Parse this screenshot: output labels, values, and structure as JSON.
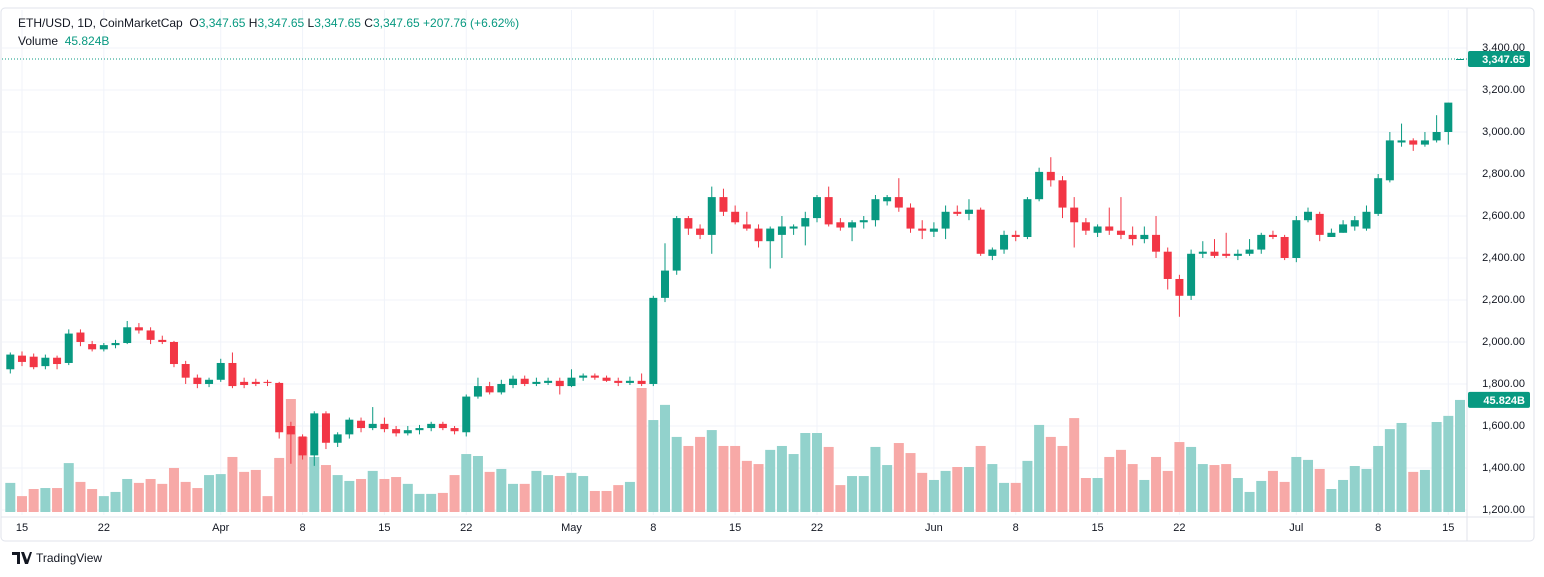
{
  "chart_data": {
    "type": "candlestick",
    "title": "ETH/USD, 1D, CoinMarketCap",
    "ohlc_header": [
      {
        "key": "O",
        "value": "3,347.65"
      },
      {
        "key": "H",
        "value": "3,347.65"
      },
      {
        "key": "L",
        "value": "3,347.65"
      },
      {
        "key": "C",
        "value": "3,347.65"
      }
    ],
    "change_label": "+207.76 (+6.62%)",
    "volume_title": "Volume",
    "volume_label": "45.824B",
    "last_price": {
      "value": 3347.65,
      "label": "3,347.65"
    },
    "footer": "TradingView",
    "up_color": "#089981",
    "down_color": "#f23645",
    "volume_up_color": "#92d2cc",
    "volume_down_color": "#f7a9a7",
    "grid": true,
    "categories": [
      null,
      "15",
      null,
      null,
      null,
      null,
      null,
      null,
      "22",
      null,
      null,
      null,
      null,
      null,
      null,
      null,
      null,
      null,
      "Apr",
      null,
      null,
      null,
      null,
      null,
      null,
      "8",
      null,
      null,
      null,
      null,
      null,
      null,
      "15",
      null,
      null,
      null,
      null,
      null,
      null,
      "22",
      null,
      null,
      null,
      null,
      null,
      null,
      null,
      null,
      "May",
      null,
      null,
      null,
      null,
      null,
      null,
      "8",
      null,
      null,
      null,
      null,
      null,
      null,
      "15",
      null,
      null,
      null,
      null,
      null,
      null,
      "22",
      null,
      null,
      null,
      null,
      null,
      null,
      null,
      null,
      null,
      "Jun",
      null,
      null,
      null,
      null,
      null,
      null,
      "8",
      null,
      null,
      null,
      null,
      null,
      null,
      "15",
      null,
      null,
      null,
      null,
      null,
      null,
      "22",
      null,
      null,
      null,
      null,
      null,
      null,
      null,
      null,
      null,
      "Jul",
      null,
      null,
      null,
      null,
      null,
      null,
      "8",
      null,
      null,
      null,
      null,
      null,
      "15",
      null
    ],
    "open": [
      1870,
      1935,
      1930,
      1885,
      1925,
      1900,
      2045,
      1990,
      1965,
      1985,
      1995,
      2070,
      2055,
      2010,
      2000,
      1895,
      1830,
      1800,
      1820,
      1900,
      1810,
      1810,
      1810,
      1805,
      1600,
      1550,
      1460,
      1660,
      1520,
      1560,
      1625,
      1590,
      1610,
      1585,
      1565,
      1580,
      1590,
      1610,
      1590,
      1570,
      1740,
      1790,
      1760,
      1795,
      1825,
      1800,
      1805,
      1815,
      1790,
      1830,
      1840,
      1830,
      1815,
      1805,
      1815,
      1800,
      2210,
      2340,
      2590,
      2540,
      2510,
      2690,
      2620,
      2560,
      2540,
      2480,
      2510,
      2540,
      2550,
      2590,
      2690,
      2570,
      2545,
      2570,
      2580,
      2670,
      2690,
      2640,
      2540,
      2525,
      2540,
      2620,
      2610,
      2630,
      2410,
      2440,
      2510,
      2500,
      2680,
      2810,
      2770,
      2640,
      2570,
      2520,
      2550,
      2530,
      2510,
      2490,
      2510,
      2430,
      2300,
      2220,
      2420,
      2430,
      2420,
      2410,
      2420,
      2440,
      2510,
      2500,
      2400,
      2580,
      2610,
      2500,
      2520,
      2550,
      2540,
      2610,
      2770,
      2950,
      2960,
      2940,
      2960,
      3000,
      3347.65
    ],
    "high": [
      1950,
      1955,
      1945,
      1940,
      1935,
      2060,
      2060,
      2005,
      1995,
      2010,
      2100,
      2090,
      2070,
      2030,
      2005,
      1910,
      1845,
      1830,
      1920,
      1950,
      1830,
      1825,
      1820,
      1810,
      1620,
      1560,
      1670,
      1670,
      1570,
      1640,
      1640,
      1690,
      1640,
      1600,
      1600,
      1605,
      1620,
      1620,
      1600,
      1750,
      1830,
      1810,
      1820,
      1840,
      1840,
      1830,
      1830,
      1830,
      1870,
      1850,
      1850,
      1840,
      1830,
      1835,
      1850,
      2220,
      2470,
      2600,
      2600,
      2560,
      2740,
      2730,
      2650,
      2620,
      2560,
      2550,
      2600,
      2560,
      2620,
      2700,
      2740,
      2590,
      2580,
      2600,
      2700,
      2700,
      2780,
      2660,
      2580,
      2570,
      2650,
      2650,
      2680,
      2640,
      2450,
      2530,
      2530,
      2690,
      2830,
      2880,
      2790,
      2690,
      2590,
      2560,
      2640,
      2690,
      2550,
      2550,
      2600,
      2450,
      2320,
      2440,
      2480,
      2490,
      2520,
      2440,
      2490,
      2520,
      2530,
      2510,
      2600,
      2640,
      2620,
      2540,
      2580,
      2600,
      2650,
      2800,
      3000,
      3040,
      2970,
      3000,
      3080,
      3140,
      3347.65
    ],
    "low": [
      1850,
      1885,
      1870,
      1870,
      1870,
      1890,
      1980,
      1955,
      1955,
      1970,
      1990,
      2040,
      1990,
      1990,
      1880,
      1800,
      1780,
      1785,
      1810,
      1780,
      1780,
      1790,
      1790,
      1540,
      1420,
      1440,
      1410,
      1490,
      1500,
      1540,
      1570,
      1580,
      1570,
      1550,
      1555,
      1560,
      1575,
      1580,
      1560,
      1550,
      1730,
      1750,
      1750,
      1780,
      1790,
      1790,
      1795,
      1750,
      1785,
      1815,
      1820,
      1810,
      1790,
      1795,
      1790,
      1790,
      2190,
      2320,
      2510,
      2490,
      2420,
      2600,
      2560,
      2530,
      2450,
      2350,
      2400,
      2510,
      2460,
      2570,
      2550,
      2530,
      2480,
      2540,
      2550,
      2650,
      2620,
      2520,
      2490,
      2500,
      2490,
      2600,
      2580,
      2410,
      2390,
      2420,
      2480,
      2490,
      2670,
      2740,
      2590,
      2450,
      2510,
      2500,
      2510,
      2490,
      2460,
      2470,
      2400,
      2250,
      2120,
      2200,
      2400,
      2400,
      2400,
      2390,
      2410,
      2420,
      2490,
      2390,
      2380,
      2570,
      2480,
      2500,
      2520,
      2530,
      2530,
      2600,
      2760,
      2930,
      2910,
      2930,
      2950,
      2940,
      3347.65
    ],
    "close": [
      1940,
      1905,
      1880,
      1925,
      1895,
      2040,
      2000,
      1965,
      1985,
      1995,
      2070,
      2055,
      2010,
      2000,
      1895,
      1830,
      1800,
      1820,
      1900,
      1790,
      1795,
      1800,
      1805,
      1570,
      1560,
      1460,
      1660,
      1520,
      1560,
      1630,
      1590,
      1610,
      1585,
      1565,
      1580,
      1590,
      1610,
      1590,
      1575,
      1740,
      1790,
      1760,
      1800,
      1825,
      1800,
      1810,
      1815,
      1790,
      1830,
      1840,
      1830,
      1815,
      1805,
      1815,
      1800,
      2210,
      2340,
      2590,
      2540,
      2510,
      2690,
      2620,
      2570,
      2540,
      2480,
      2540,
      2550,
      2550,
      2590,
      2690,
      2560,
      2545,
      2570,
      2580,
      2680,
      2690,
      2640,
      2540,
      2530,
      2540,
      2620,
      2610,
      2630,
      2420,
      2440,
      2510,
      2500,
      2680,
      2810,
      2770,
      2640,
      2570,
      2530,
      2550,
      2530,
      2510,
      2490,
      2510,
      2430,
      2300,
      2220,
      2420,
      2430,
      2410,
      2410,
      2420,
      2440,
      2510,
      2500,
      2400,
      2580,
      2620,
      2510,
      2520,
      2560,
      2580,
      2620,
      2780,
      2960,
      2960,
      2940,
      2960,
      3000,
      3139.89,
      3347.65
    ],
    "volume": [
      11.9,
      6.5,
      9.4,
      9.8,
      9.8,
      20,
      12.3,
      9.4,
      6.5,
      8.2,
      13.5,
      11.9,
      13.5,
      11.5,
      18,
      12.3,
      9.8,
      15.1,
      15.5,
      22.5,
      16.4,
      17.2,
      6.5,
      22.1,
      46.2,
      30.7,
      22.5,
      19.2,
      15.1,
      12.7,
      13.5,
      16.8,
      13.5,
      14.3,
      11.5,
      7.4,
      7.4,
      7.8,
      15.1,
      23.7,
      22.9,
      16.4,
      17.6,
      11.5,
      11.5,
      16.8,
      15.1,
      14.7,
      16,
      14.7,
      8.6,
      8.6,
      11,
      12.3,
      50.7,
      37.6,
      43.8,
      30.7,
      27,
      30.7,
      33.5,
      27,
      27,
      20.9,
      19.6,
      25.4,
      27,
      23.7,
      32.3,
      32.3,
      26.6,
      11,
      14.7,
      14.7,
      26.6,
      19.2,
      28.2,
      24.1,
      16,
      13.1,
      16.8,
      18.4,
      18.4,
      27,
      19.6,
      11.9,
      11.9,
      20.9,
      35.6,
      30.7,
      27,
      38.4,
      13.9,
      13.9,
      22.5,
      25.4,
      19.6,
      13.1,
      22.5,
      16.8,
      28.6,
      26.6,
      19.6,
      19.2,
      19.6,
      13.9,
      8.2,
      12.7,
      16.8,
      12.3,
      22.5,
      21.3,
      17.6,
      9.4,
      13.1,
      18.8,
      17.6,
      27,
      33.9,
      36.4,
      16.4,
      17.2,
      36.8,
      39.3,
      45.824
    ],
    "ylim": [
      1176,
      3581
    ],
    "yticks": [
      {
        "value": 1200,
        "label": "1,200.00"
      },
      {
        "value": 1400,
        "label": "1,400.00"
      },
      {
        "value": 1600,
        "label": "1,600.00"
      },
      {
        "value": 1800,
        "label": "1,800.00"
      },
      {
        "value": 2000,
        "label": "2,000.00"
      },
      {
        "value": 2200,
        "label": "2,200.00"
      },
      {
        "value": 2400,
        "label": "2,400.00"
      },
      {
        "value": 2600,
        "label": "2,600.00"
      },
      {
        "value": 2800,
        "label": "2,800.00"
      },
      {
        "value": 3000,
        "label": "3,000.00"
      },
      {
        "value": 3200,
        "label": "3,200.00"
      },
      {
        "value": 3400,
        "label": "3,400.00"
      }
    ]
  }
}
